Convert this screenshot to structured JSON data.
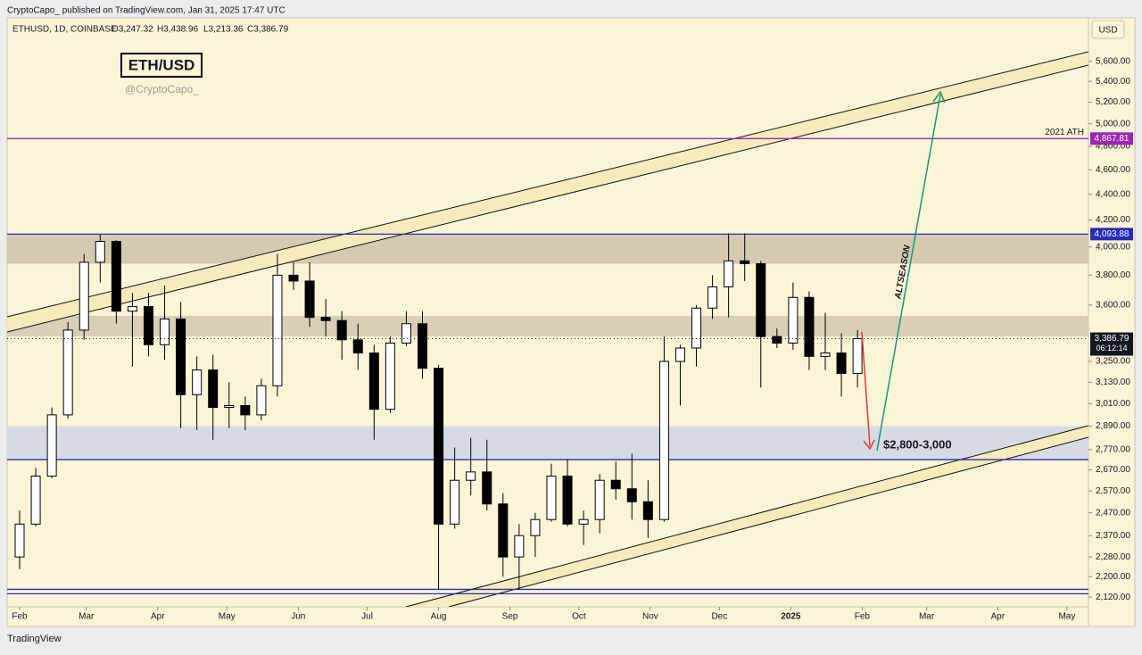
{
  "header": {
    "published": "CryptoCapo_ published on TradingView.com, Jan 31, 2025 17:47 UTC"
  },
  "legend": {
    "symbol": "ETHUSD, 1D, COINBASE",
    "open": "O3,247.32",
    "high": "H3,438.96",
    "low": "L3,213.36",
    "close": "C3,386.79"
  },
  "footer": {
    "brand": "TradingView"
  },
  "chart_data": {
    "type": "candlestick",
    "title": "ETH/USD",
    "subtitle": "@CryptoCapo_",
    "currency": "USD",
    "categories": [
      null,
      null,
      null,
      null,
      null,
      null,
      null,
      null,
      null,
      null,
      null,
      null,
      null,
      null,
      null,
      null,
      null,
      null,
      null,
      null,
      null,
      null,
      null,
      null,
      null,
      null,
      null,
      null,
      null,
      null,
      null,
      null,
      null,
      null,
      null,
      null,
      null,
      null,
      null,
      null,
      null,
      null,
      null,
      null,
      null,
      null,
      null,
      null,
      null,
      null,
      null,
      null,
      null
    ],
    "open": [
      2280,
      2420,
      2640,
      2950,
      3440,
      3890,
      4040,
      3560,
      3590,
      3350,
      3510,
      3060,
      3200,
      2990,
      3000,
      2950,
      3110,
      3800,
      3760,
      3520,
      3500,
      3380,
      3300,
      2980,
      3360,
      3480,
      3210,
      2420,
      2620,
      2660,
      2510,
      2280,
      2370,
      2440,
      2640,
      2420,
      2440,
      2620,
      2580,
      2520,
      2440,
      3250,
      3330,
      3580,
      3720,
      3900,
      3880,
      3400,
      3360,
      3650,
      3280,
      3300,
      3180
    ],
    "high": [
      2480,
      2680,
      2990,
      3490,
      3950,
      4090,
      4050,
      3680,
      3680,
      3730,
      3620,
      3280,
      3290,
      3130,
      3050,
      3150,
      3950,
      3890,
      3890,
      3640,
      3560,
      3480,
      3350,
      3400,
      3560,
      3560,
      3230,
      2780,
      2830,
      2820,
      2560,
      2420,
      2470,
      2700,
      2720,
      2480,
      2650,
      2710,
      2750,
      2620,
      3400,
      3350,
      3600,
      3800,
      4100,
      4100,
      3900,
      3450,
      3750,
      3690,
      3550,
      3420,
      3440
    ],
    "low": [
      2230,
      2410,
      2630,
      2930,
      3380,
      3750,
      3480,
      3220,
      3280,
      3260,
      2880,
      2870,
      2820,
      2880,
      2870,
      2920,
      3050,
      3700,
      3460,
      3400,
      3260,
      3200,
      2820,
      2960,
      3340,
      3150,
      2150,
      2400,
      2550,
      2480,
      2200,
      2150,
      2280,
      2430,
      2410,
      2330,
      2380,
      2530,
      2440,
      2360,
      2430,
      3000,
      3220,
      3510,
      3520,
      3760,
      3100,
      3330,
      3320,
      3200,
      3200,
      3050,
      3100
    ],
    "close": [
      2420,
      2640,
      2950,
      3440,
      3890,
      4040,
      3560,
      3590,
      3350,
      3510,
      3060,
      3200,
      2990,
      3000,
      2950,
      3110,
      3800,
      3760,
      3520,
      3500,
      3380,
      3300,
      2980,
      3360,
      3480,
      3210,
      2420,
      2620,
      2660,
      2510,
      2280,
      2370,
      2440,
      2640,
      2420,
      2440,
      2620,
      2580,
      2520,
      2440,
      3250,
      3330,
      3580,
      3720,
      3900,
      3880,
      3400,
      3360,
      3650,
      3280,
      3300,
      3180,
      3386.79
    ],
    "up_color": "#ffffff",
    "down_color": "#000000",
    "ylim": [
      2083,
      6059
    ],
    "log_scale": true,
    "yticks": [
      {
        "value": 2120,
        "label": "2,120.00"
      },
      {
        "value": 2200,
        "label": "2,200.00"
      },
      {
        "value": 2280,
        "label": "2,280.00"
      },
      {
        "value": 2370,
        "label": "2,370.00"
      },
      {
        "value": 2470,
        "label": "2,470.00"
      },
      {
        "value": 2570,
        "label": "2,570.00"
      },
      {
        "value": 2670,
        "label": "2,670.00"
      },
      {
        "value": 2770,
        "label": "2,770.00"
      },
      {
        "value": 2890,
        "label": "2,890.00"
      },
      {
        "value": 3010,
        "label": "3,010.00"
      },
      {
        "value": 3130,
        "label": "3,130.00"
      },
      {
        "value": 3250,
        "label": "3,250.00"
      },
      {
        "value": 3600,
        "label": "3,600.00"
      },
      {
        "value": 3800,
        "label": "3,800.00"
      },
      {
        "value": 4000,
        "label": "4,000.00"
      },
      {
        "value": 4200,
        "label": "4,200.00"
      },
      {
        "value": 4400,
        "label": "4,400.00"
      },
      {
        "value": 4600,
        "label": "4,600.00"
      },
      {
        "value": 4800,
        "label": "4,800.00"
      },
      {
        "value": 5000,
        "label": "5,000.00"
      },
      {
        "value": 5200,
        "label": "5,200.00"
      },
      {
        "value": 5400,
        "label": "5,400.00"
      },
      {
        "value": 5600,
        "label": "5,600.00"
      }
    ],
    "xticks": [
      {
        "value": 0,
        "label": "Feb"
      },
      {
        "value": 4.14,
        "label": "Mar"
      },
      {
        "value": 8.57,
        "label": "Apr"
      },
      {
        "value": 12.86,
        "label": "May"
      },
      {
        "value": 17.29,
        "label": "Jun"
      },
      {
        "value": 21.57,
        "label": "Jul"
      },
      {
        "value": 26,
        "label": "Aug"
      },
      {
        "value": 30.43,
        "label": "Sep"
      },
      {
        "value": 34.71,
        "label": "Oct"
      },
      {
        "value": 39.14,
        "label": "Nov"
      },
      {
        "value": 43.43,
        "label": "Dec"
      },
      {
        "value": 47.86,
        "label": "2025"
      },
      {
        "value": 52.29,
        "label": "Feb"
      },
      {
        "value": 56.29,
        "label": "Mar"
      },
      {
        "value": 60.71,
        "label": "Apr"
      },
      {
        "value": 65,
        "label": "May"
      }
    ],
    "last_price": {
      "value": 3386.79,
      "label": "3,386.79",
      "countdown": "06:12:14",
      "color": "#131722"
    },
    "levels": [
      {
        "value": 4867.81,
        "label": "4,867.81",
        "name": "2021 ATH",
        "color": "#9c27b0"
      },
      {
        "value": 4093.88,
        "label": "4,093.88",
        "color": "#2a2ab8"
      },
      {
        "value": 2720,
        "color": "#2a2ab8"
      },
      {
        "value": 2150,
        "color": "#2a2ab8"
      },
      {
        "value": 2133,
        "color": "#2a2ab8"
      }
    ],
    "zones": [
      {
        "from": 3880,
        "to": 4093.88,
        "color": "#d3cab1"
      },
      {
        "from": 3400,
        "to": 3530,
        "color": "#d8cfb6"
      },
      {
        "from": 2720,
        "to": 2890,
        "color": "#d6dbe3"
      }
    ],
    "annotations": [
      "$2,800-3,000",
      "ALTSEASON"
    ]
  }
}
